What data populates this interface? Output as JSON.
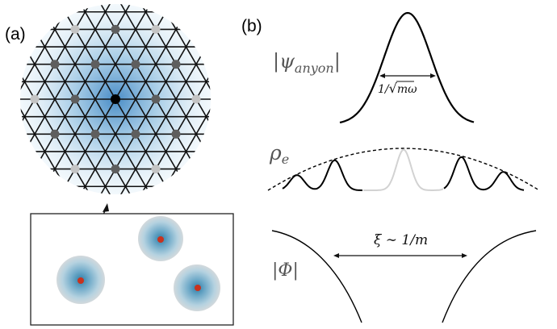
{
  "figure": {
    "panel_a_label": "(a)",
    "panel_b_label": "(b)"
  },
  "panel_b": {
    "psi_label": "|ψ",
    "psi_subscript": "anyon",
    "psi_close": "|",
    "width_label_prefix": "1/",
    "width_label_radicand": "mω",
    "rho_label": "ρ",
    "rho_subscript": "e",
    "phi_label": "|Φ|",
    "xi_label": "ξ ∼ 1/m"
  },
  "colors": {
    "lattice_line": "#111111",
    "site_dark": "#5e5e5e",
    "site_light": "#c4c4c4",
    "site_center": "#000000",
    "glow_blue": "#4a90c8",
    "anyon_core": "#c8321e",
    "curve": "#000000",
    "faded_curve": "#d4d4d4"
  }
}
